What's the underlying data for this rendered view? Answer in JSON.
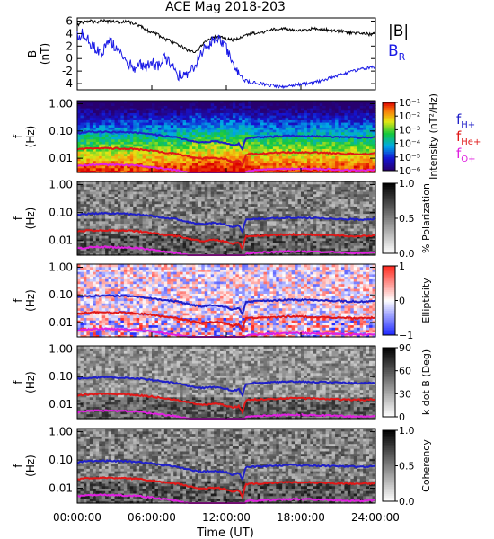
{
  "chart_data": {
    "type": "spectrogram",
    "title": "ACE Mag 2018-203",
    "xlabel": "Time (UT)",
    "x_ticks": [
      "00:00:00",
      "06:00:00",
      "12:00:00",
      "18:00:00",
      "24:00:00"
    ],
    "x_range": [
      0,
      24
    ],
    "line_panel": {
      "ylabel": "B",
      "yunit": "(nT)",
      "ylim": [
        -5,
        6.5
      ],
      "y_ticks": [
        "6",
        "4",
        "2",
        "0",
        "-2",
        "-4"
      ],
      "legend": [
        "|B|",
        "B_R"
      ],
      "series": [
        {
          "name": "|B|",
          "color": "#000000",
          "x": [
            0,
            0.5,
            1,
            1.5,
            2,
            2.5,
            3,
            3.5,
            4,
            4.5,
            5,
            5.5,
            6,
            6.5,
            7,
            7.5,
            8,
            8.5,
            9,
            9.5,
            10,
            10.5,
            11,
            11.5,
            12,
            12.5,
            13,
            13.5,
            14,
            14.5,
            15,
            15.5,
            16,
            16.5,
            17,
            17.5,
            18,
            18.5,
            19,
            19.5,
            20,
            20.5,
            21,
            21.5,
            22,
            22.5,
            23,
            23.5,
            24
          ],
          "y": [
            5.4,
            5.8,
            6.0,
            5.8,
            6.1,
            5.9,
            6.0,
            5.8,
            5.9,
            5.7,
            5.3,
            4.6,
            4.2,
            3.8,
            3.2,
            2.8,
            2.4,
            1.8,
            1.2,
            1.0,
            2.0,
            3.0,
            3.4,
            3.5,
            3.2,
            3.0,
            3.3,
            3.7,
            4.0,
            4.1,
            4.3,
            4.5,
            4.7,
            4.8,
            4.7,
            4.6,
            4.5,
            4.6,
            4.8,
            4.7,
            4.6,
            4.5,
            4.4,
            4.3,
            4.1,
            4.0,
            4.0,
            3.9,
            4.0
          ]
        },
        {
          "name": "B_R",
          "color": "#1a1ae6",
          "x": [
            0,
            0.5,
            1,
            1.5,
            2,
            2.5,
            3,
            3.5,
            4,
            4.5,
            5,
            5.5,
            6,
            6.5,
            7,
            7.5,
            8,
            8.5,
            9,
            9.5,
            10,
            10.5,
            11,
            11.5,
            12,
            12.5,
            13,
            13.5,
            14,
            14.5,
            15,
            15.5,
            16,
            16.5,
            17,
            17.5,
            18,
            18.5,
            19,
            19.5,
            20,
            20.5,
            21,
            21.5,
            22,
            22.5,
            23,
            23.5,
            24
          ],
          "y": [
            3.5,
            4.0,
            2.5,
            1.5,
            0.5,
            3.0,
            2.0,
            0.5,
            -0.5,
            -1.5,
            -1.0,
            -1.5,
            -0.5,
            -1.5,
            0.5,
            -1.0,
            -2.5,
            -3.0,
            -2.0,
            -1.0,
            1.0,
            2.0,
            3.0,
            3.0,
            1.5,
            0.0,
            -2.5,
            -3.5,
            -3.8,
            -3.9,
            -4.1,
            -4.3,
            -4.4,
            -4.5,
            -4.4,
            -4.2,
            -4.1,
            -4.0,
            -3.8,
            -3.6,
            -3.3,
            -3.0,
            -2.7,
            -2.4,
            -2.1,
            -1.8,
            -1.6,
            -1.4,
            -1.3
          ]
        }
      ]
    },
    "spectrogram_panels": [
      {
        "key": "intensity",
        "ylabel": "f",
        "yunit": "(Hz)",
        "colormap": "rainbow",
        "colorbar_label": "Intensity (nT²/Hz)",
        "colorbar_ticks": [
          "10⁻¹",
          "10⁻²",
          "10⁻³",
          "10⁻⁴",
          "10⁻⁵",
          "10⁻⁶"
        ],
        "legend": [
          {
            "label": "f",
            "sub": "H+",
            "color": "#2020c8"
          },
          {
            "label": "f",
            "sub": "He+",
            "color": "#e01818"
          },
          {
            "label": "f",
            "sub": "O+",
            "color": "#e020e0"
          }
        ]
      },
      {
        "key": "polarization",
        "ylabel": "f",
        "yunit": "(Hz)",
        "colormap": "gray",
        "colorbar_label": "% Polarization",
        "colorbar_ticks": [
          "1.0",
          "0.5",
          "0.0"
        ]
      },
      {
        "key": "ellipticity",
        "ylabel": "f",
        "yunit": "(Hz)",
        "colormap": "bwr",
        "colorbar_label": "Ellipticity",
        "colorbar_ticks": [
          "1",
          "0",
          "−1"
        ]
      },
      {
        "key": "kdotb",
        "ylabel": "f",
        "yunit": "(Hz)",
        "colormap": "gray",
        "colorbar_label": "k dot B (Deg)",
        "colorbar_ticks": [
          "90",
          "60",
          "30",
          "0"
        ]
      },
      {
        "key": "coherency",
        "ylabel": "f",
        "yunit": "(Hz)",
        "colormap": "gray",
        "colorbar_label": "Coherency",
        "colorbar_ticks": [
          "1.0",
          "0.5",
          "0.0"
        ]
      }
    ],
    "freq_ticks": [
      "1.00",
      "0.10",
      "0.01"
    ],
    "freq_range": [
      0.003,
      1.3
    ],
    "gyrofrequency_lines": [
      {
        "name": "H+",
        "color": "#2020c8",
        "x": [
          0,
          1,
          2,
          3,
          4,
          5,
          6,
          7,
          8,
          9,
          10,
          11,
          11.5,
          12,
          12.5,
          13,
          13.3,
          13.6,
          14,
          15,
          16,
          17,
          18,
          19,
          20,
          21,
          22,
          23,
          24
        ],
        "y": [
          0.082,
          0.092,
          0.094,
          0.092,
          0.09,
          0.085,
          0.075,
          0.065,
          0.058,
          0.045,
          0.038,
          0.042,
          0.04,
          0.036,
          0.03,
          0.034,
          0.02,
          0.055,
          0.058,
          0.06,
          0.063,
          0.066,
          0.065,
          0.064,
          0.062,
          0.06,
          0.058,
          0.057,
          0.06
        ]
      },
      {
        "name": "He+",
        "color": "#e01818",
        "x": [
          0,
          1,
          2,
          3,
          4,
          5,
          6,
          7,
          8,
          9,
          10,
          11,
          11.5,
          12,
          12.5,
          13,
          13.3,
          13.6,
          14,
          15,
          16,
          17,
          18,
          19,
          20,
          21,
          22,
          23,
          24
        ],
        "y": [
          0.021,
          0.023,
          0.0235,
          0.023,
          0.0225,
          0.021,
          0.019,
          0.016,
          0.0145,
          0.0115,
          0.0095,
          0.0105,
          0.01,
          0.009,
          0.0075,
          0.0085,
          0.005,
          0.0138,
          0.0145,
          0.015,
          0.0158,
          0.0165,
          0.0163,
          0.016,
          0.0155,
          0.015,
          0.0145,
          0.0143,
          0.015
        ]
      },
      {
        "name": "O+",
        "color": "#e020e0",
        "x": [
          0,
          1,
          2,
          3,
          4,
          5,
          6,
          7,
          8,
          9,
          10,
          11,
          11.5,
          12,
          12.5,
          13,
          13.3,
          13.6,
          14,
          15,
          16,
          17,
          18,
          19,
          20,
          21,
          22,
          23,
          24
        ],
        "y": [
          0.0052,
          0.0057,
          0.0059,
          0.0057,
          0.0056,
          0.0053,
          0.0047,
          0.0041,
          0.0036,
          0.0029,
          0.0024,
          0.0026,
          0.0025,
          0.0023,
          0.0019,
          0.0021,
          0.0013,
          0.0034,
          0.0036,
          0.0038,
          0.0039,
          0.0041,
          0.0041,
          0.004,
          0.0039,
          0.0038,
          0.0036,
          0.0036,
          0.0038
        ]
      }
    ]
  }
}
